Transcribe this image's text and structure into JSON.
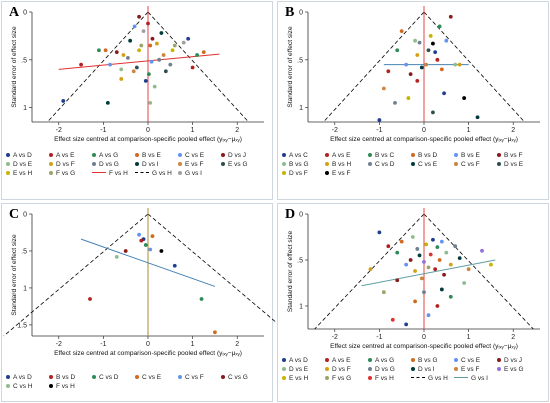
{
  "panels": [
    {
      "label": "A",
      "ylabel": "Standard error of effect size",
      "xlabel": "Effect size centred at comparison-specific pooled effect (yᵢₓᵧ−μₓᵧ)"
    },
    {
      "label": "B",
      "ylabel": "Standard error of effect size",
      "xlabel": "Effect size centred at comparison-specific pooled effect (yᵢₓᵧ−μₓᵧ)"
    },
    {
      "label": "C",
      "ylabel": "Standard error of effect size",
      "xlabel": "Effect size centred at comparison-specific pooled effect (yᵢₓᵧ−μₓᵧ)"
    },
    {
      "label": "D",
      "ylabel": "Standard error of effect size",
      "xlabel": "Effect size centred at comparison-specific pooled effect (yᵢₓᵧ−μₓᵧ)"
    }
  ],
  "chart_data": [
    {
      "type": "scatter",
      "panel": "A",
      "xticks": [
        "-2",
        "-1",
        "0",
        "1",
        "2"
      ],
      "yticks": [
        "0",
        ".5",
        "1"
      ],
      "xlim": [
        -2.6,
        2.6
      ],
      "ylim": [
        0,
        1.15
      ],
      "legend": [
        {
          "name": "A vs D",
          "color": "#1f3f8f"
        },
        {
          "name": "A vs E",
          "color": "#b22222"
        },
        {
          "name": "A vs G",
          "color": "#2e8b57"
        },
        {
          "name": "B vs E",
          "color": "#d2691e"
        },
        {
          "name": "C vs E",
          "color": "#6495ed"
        },
        {
          "name": "D vs J",
          "color": "#8b1a1a"
        },
        {
          "name": "D vs E",
          "color": "#8fbc8f"
        },
        {
          "name": "D vs F",
          "color": "#d4a017"
        },
        {
          "name": "D vs G",
          "color": "#708090"
        },
        {
          "name": "D vs I",
          "color": "#003c3c"
        },
        {
          "name": "E vs F",
          "color": "#cd853f"
        },
        {
          "name": "E vs G",
          "color": "#2f4f4f"
        },
        {
          "name": "E vs H",
          "color": "#c8b400"
        },
        {
          "name": "F vs G",
          "color": "#9aa36a"
        },
        {
          "name": "F vs H",
          "color": "#e03030",
          "line": true
        },
        {
          "name": "G vs H",
          "color": "#000000",
          "dash": true
        },
        {
          "name": "G vs I",
          "color": "#a0a0a0"
        }
      ],
      "points": [
        [
          -1.9,
          0.93
        ],
        [
          -1.5,
          0.55
        ],
        [
          -1.1,
          0.4
        ],
        [
          -0.95,
          0.4
        ],
        [
          -0.85,
          0.55
        ],
        [
          -0.7,
          0.42
        ],
        [
          -0.6,
          0.6
        ],
        [
          -0.55,
          0.45
        ],
        [
          -0.45,
          0.48
        ],
        [
          -0.4,
          0.3
        ],
        [
          -0.32,
          0.62
        ],
        [
          -0.25,
          0.58
        ],
        [
          -0.2,
          0.4
        ],
        [
          -0.15,
          0.35
        ],
        [
          -0.1,
          0.2
        ],
        [
          -0.05,
          0.72
        ],
        [
          0.0,
          0.12
        ],
        [
          0.02,
          0.65
        ],
        [
          0.05,
          0.35
        ],
        [
          0.08,
          0.52
        ],
        [
          0.1,
          0.28
        ],
        [
          0.15,
          0.78
        ],
        [
          0.2,
          0.33
        ],
        [
          0.25,
          0.5
        ],
        [
          0.3,
          0.22
        ],
        [
          0.35,
          0.45
        ],
        [
          0.4,
          0.62
        ],
        [
          0.55,
          0.4
        ],
        [
          0.6,
          0.35
        ],
        [
          0.8,
          0.32
        ],
        [
          0.9,
          0.28
        ],
        [
          1.0,
          0.58
        ],
        [
          1.1,
          0.45
        ],
        [
          1.25,
          0.42
        ],
        [
          -0.3,
          0.15
        ],
        [
          -0.2,
          0.05
        ],
        [
          0.05,
          0.95
        ],
        [
          -0.6,
          0.7
        ],
        [
          0.5,
          0.55
        ],
        [
          -0.9,
          0.95
        ]
      ],
      "regression": {
        "x": [
          -2.0,
          1.6
        ],
        "y": [
          0.6,
          0.44
        ]
      },
      "pooled_x": 0
    },
    {
      "type": "scatter",
      "panel": "B",
      "xticks": [
        "-2",
        "-1",
        "0",
        "1",
        "2"
      ],
      "yticks": [
        "0",
        ".5",
        "1"
      ],
      "xlim": [
        -2.6,
        2.6
      ],
      "ylim": [
        0,
        1.15
      ],
      "legend": [
        {
          "name": "A vs C",
          "color": "#1f3f8f"
        },
        {
          "name": "A vs E",
          "color": "#b22222"
        },
        {
          "name": "B vs C",
          "color": "#2e8b57"
        },
        {
          "name": "B vs D",
          "color": "#d2691e"
        },
        {
          "name": "B vs E",
          "color": "#6495ed"
        },
        {
          "name": "B vs F",
          "color": "#8b1a1a"
        },
        {
          "name": "B vs G",
          "color": "#8fbc8f"
        },
        {
          "name": "B vs H",
          "color": "#d4a017"
        },
        {
          "name": "C vs D",
          "color": "#708090"
        },
        {
          "name": "C vs E",
          "color": "#003c3c"
        },
        {
          "name": "C vs F",
          "color": "#cd853f"
        },
        {
          "name": "D vs E",
          "color": "#2f4f4f"
        },
        {
          "name": "D vs F",
          "color": "#c8b400"
        },
        {
          "name": "E vs F",
          "color": "#000000"
        }
      ],
      "points": [
        [
          -1.0,
          1.13
        ],
        [
          -0.8,
          0.62
        ],
        [
          -0.6,
          0.4
        ],
        [
          -0.5,
          0.2
        ],
        [
          -0.4,
          0.55
        ],
        [
          -0.3,
          0.65
        ],
        [
          -0.2,
          0.3
        ],
        [
          -0.15,
          0.45
        ],
        [
          -0.1,
          0.32
        ],
        [
          -0.05,
          0.58
        ],
        [
          0.05,
          0.55
        ],
        [
          0.1,
          0.4
        ],
        [
          0.15,
          0.25
        ],
        [
          0.2,
          0.33
        ],
        [
          0.25,
          0.42
        ],
        [
          0.3,
          0.5
        ],
        [
          0.35,
          0.15
        ],
        [
          0.4,
          0.6
        ],
        [
          0.5,
          0.3
        ],
        [
          0.6,
          0.05
        ],
        [
          0.7,
          0.55
        ],
        [
          0.8,
          0.55
        ],
        [
          -0.65,
          0.95
        ],
        [
          1.2,
          1.1
        ],
        [
          -0.9,
          0.8
        ],
        [
          0.2,
          1.05
        ],
        [
          -0.35,
          0.9
        ],
        [
          0.9,
          0.9
        ],
        [
          0.45,
          0.85
        ],
        [
          -0.15,
          0.72
        ]
      ],
      "regression": {
        "x": [
          -0.9,
          1.0
        ],
        "y": [
          0.55,
          0.55
        ]
      },
      "pooled_x": 0
    },
    {
      "type": "scatter",
      "panel": "C",
      "xticks": [
        "-2",
        "-1",
        "0",
        "1",
        "2"
      ],
      "yticks": [
        "0",
        ".5",
        "1",
        "1.5"
      ],
      "xlim": [
        -2.6,
        2.6
      ],
      "ylim": [
        0,
        1.65
      ],
      "legend": [
        {
          "name": "A vs D",
          "color": "#1f3f8f"
        },
        {
          "name": "B vs D",
          "color": "#b22222"
        },
        {
          "name": "C vs D",
          "color": "#2e8b57"
        },
        {
          "name": "C vs E",
          "color": "#d2691e"
        },
        {
          "name": "C vs F",
          "color": "#6495ed"
        },
        {
          "name": "C vs G",
          "color": "#8b1a1a"
        },
        {
          "name": "C vs H",
          "color": "#8fbc8f"
        },
        {
          "name": "F vs H",
          "color": "#000000"
        }
      ],
      "points": [
        [
          -0.1,
          0.34
        ],
        [
          -0.15,
          0.36
        ],
        [
          -0.05,
          0.42
        ],
        [
          0.1,
          0.3
        ],
        [
          -0.2,
          0.28
        ],
        [
          -0.5,
          0.5
        ],
        [
          -0.7,
          0.58
        ],
        [
          0.3,
          0.5
        ],
        [
          0.6,
          0.7
        ],
        [
          -1.3,
          1.15
        ],
        [
          1.2,
          1.15
        ],
        [
          1.5,
          1.6
        ],
        [
          0.05,
          0.48
        ]
      ],
      "regression": {
        "x": [
          -1.5,
          1.5
        ],
        "y": [
          0.34,
          0.98
        ]
      },
      "pooled_x": 0
    },
    {
      "type": "scatter",
      "panel": "D",
      "xticks": [
        "-2",
        "-1",
        "0",
        "1",
        "2"
      ],
      "yticks": [
        "0",
        ".5",
        "1"
      ],
      "xlim": [
        -2.6,
        2.6
      ],
      "ylim": [
        0,
        1.25
      ],
      "legend": [
        {
          "name": "A vs D",
          "color": "#1f3f8f"
        },
        {
          "name": "A vs E",
          "color": "#b22222"
        },
        {
          "name": "A vs G",
          "color": "#2e8b57"
        },
        {
          "name": "B vs G",
          "color": "#d2691e"
        },
        {
          "name": "C vs E",
          "color": "#6495ed"
        },
        {
          "name": "D vs J",
          "color": "#8b1a1a"
        },
        {
          "name": "D vs E",
          "color": "#8fbc8f"
        },
        {
          "name": "D vs F",
          "color": "#d4a017"
        },
        {
          "name": "D vs G",
          "color": "#708090"
        },
        {
          "name": "D vs I",
          "color": "#003c3c"
        },
        {
          "name": "E vs F",
          "color": "#cd853f"
        },
        {
          "name": "E vs G",
          "color": "#9370db"
        },
        {
          "name": "E vs H",
          "color": "#c8b400"
        },
        {
          "name": "F vs G",
          "color": "#9aa36a"
        },
        {
          "name": "F vs H",
          "color": "#e03030"
        },
        {
          "name": "G vs H",
          "color": "#000000",
          "dash": true
        },
        {
          "name": "G vs I",
          "color": "#5f9ea0",
          "line": true
        }
      ],
      "points": [
        [
          -1.0,
          0.2
        ],
        [
          -0.8,
          0.35
        ],
        [
          -0.6,
          0.42
        ],
        [
          -0.5,
          0.3
        ],
        [
          -0.4,
          0.55
        ],
        [
          -0.3,
          0.5
        ],
        [
          -0.25,
          0.25
        ],
        [
          -0.2,
          0.62
        ],
        [
          -0.15,
          0.38
        ],
        [
          -0.1,
          0.45
        ],
        [
          -0.05,
          0.7
        ],
        [
          0.0,
          0.52
        ],
        [
          0.05,
          0.33
        ],
        [
          0.1,
          0.58
        ],
        [
          0.15,
          0.44
        ],
        [
          0.2,
          0.28
        ],
        [
          0.25,
          0.6
        ],
        [
          0.3,
          0.36
        ],
        [
          0.35,
          0.5
        ],
        [
          0.4,
          0.3
        ],
        [
          0.45,
          0.66
        ],
        [
          0.5,
          0.42
        ],
        [
          0.6,
          0.55
        ],
        [
          0.7,
          0.35
        ],
        [
          0.8,
          0.48
        ],
        [
          1.0,
          0.6
        ],
        [
          1.3,
          0.4
        ],
        [
          1.5,
          0.55
        ],
        [
          -0.9,
          0.85
        ],
        [
          -0.7,
          1.15
        ],
        [
          -0.4,
          1.2
        ],
        [
          0.3,
          1.0
        ],
        [
          0.6,
          0.9
        ],
        [
          -0.2,
          0.95
        ],
        [
          0.1,
          1.1
        ],
        [
          -0.6,
          0.72
        ],
        [
          0.9,
          0.75
        ],
        [
          -1.2,
          0.6
        ],
        [
          0.0,
          0.85
        ],
        [
          0.4,
          0.82
        ]
      ],
      "regression": {
        "x": [
          -1.4,
          1.6
        ],
        "y": [
          0.78,
          0.5
        ]
      },
      "pooled_x": 0
    }
  ]
}
